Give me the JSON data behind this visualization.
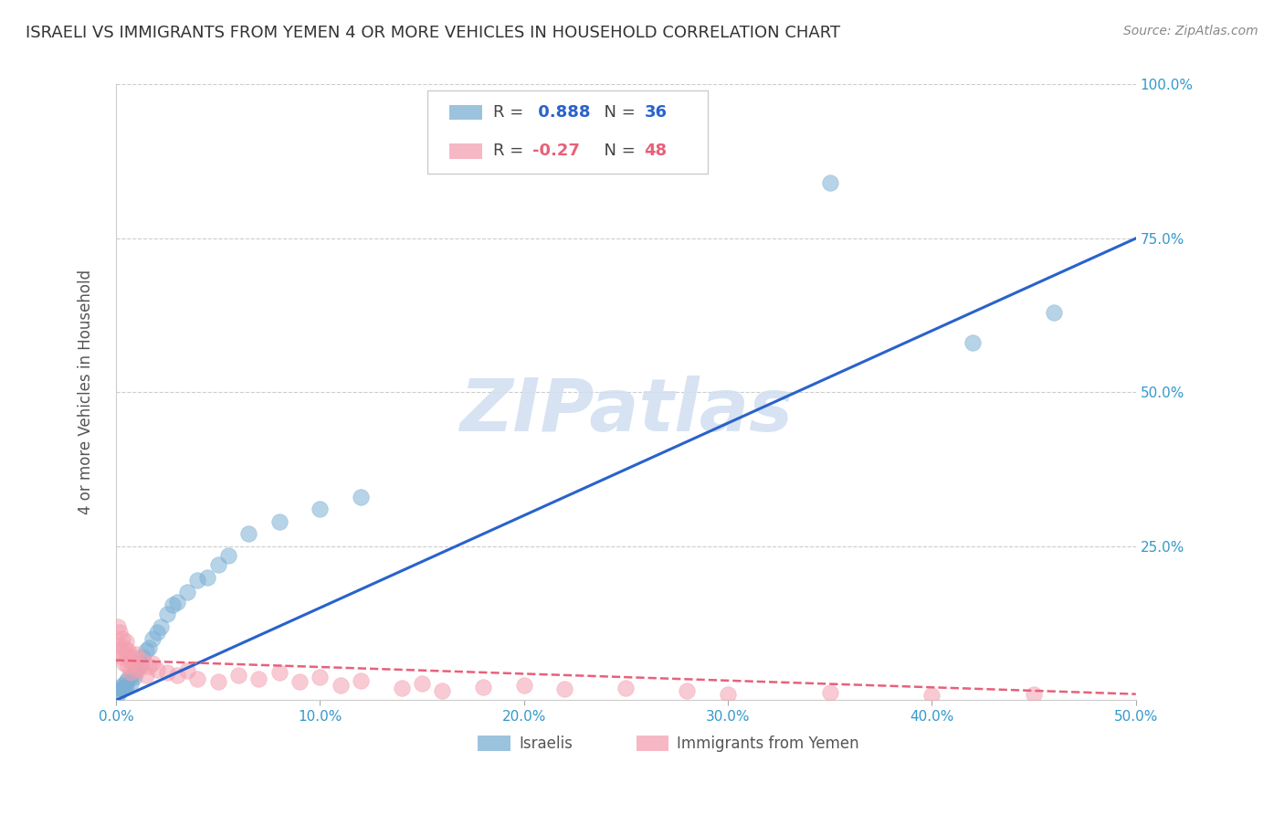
{
  "title": "ISRAELI VS IMMIGRANTS FROM YEMEN 4 OR MORE VEHICLES IN HOUSEHOLD CORRELATION CHART",
  "source": "Source: ZipAtlas.com",
  "ylabel": "4 or more Vehicles in Household",
  "xmin": 0.0,
  "xmax": 0.5,
  "ymin": 0.0,
  "ymax": 1.0,
  "xticks": [
    0.0,
    0.1,
    0.2,
    0.3,
    0.4,
    0.5
  ],
  "yticks": [
    0.0,
    0.25,
    0.5,
    0.75,
    1.0
  ],
  "ytick_labels": [
    "",
    "25.0%",
    "50.0%",
    "75.0%",
    "100.0%"
  ],
  "xtick_labels": [
    "0.0%",
    "10.0%",
    "20.0%",
    "30.0%",
    "40.0%",
    "50.0%"
  ],
  "israeli_R": 0.888,
  "israeli_N": 36,
  "yemen_R": -0.27,
  "yemen_N": 48,
  "israeli_color": "#7bafd4",
  "yemen_color": "#f4a0b0",
  "israeli_line_color": "#2962cc",
  "yemen_line_color": "#e8607a",
  "watermark": "ZIPatlas",
  "watermark_color": "#d0dff0",
  "legend_label_israeli": "Israelis",
  "legend_label_yemen": "Immigrants from Yemen",
  "israeli_x": [
    0.001,
    0.002,
    0.002,
    0.003,
    0.003,
    0.004,
    0.005,
    0.005,
    0.006,
    0.007,
    0.008,
    0.009,
    0.01,
    0.011,
    0.012,
    0.013,
    0.015,
    0.016,
    0.018,
    0.02,
    0.022,
    0.025,
    0.028,
    0.03,
    0.035,
    0.04,
    0.045,
    0.05,
    0.055,
    0.065,
    0.08,
    0.1,
    0.12,
    0.35,
    0.42,
    0.46
  ],
  "israeli_y": [
    0.01,
    0.015,
    0.02,
    0.018,
    0.025,
    0.02,
    0.022,
    0.03,
    0.035,
    0.028,
    0.04,
    0.038,
    0.05,
    0.055,
    0.06,
    0.07,
    0.08,
    0.085,
    0.1,
    0.11,
    0.12,
    0.14,
    0.155,
    0.16,
    0.175,
    0.195,
    0.2,
    0.22,
    0.235,
    0.27,
    0.29,
    0.31,
    0.33,
    0.84,
    0.58,
    0.63
  ],
  "yemen_x": [
    0.001,
    0.001,
    0.002,
    0.002,
    0.003,
    0.003,
    0.004,
    0.004,
    0.005,
    0.005,
    0.006,
    0.006,
    0.007,
    0.007,
    0.008,
    0.009,
    0.01,
    0.011,
    0.012,
    0.013,
    0.015,
    0.016,
    0.018,
    0.02,
    0.025,
    0.03,
    0.035,
    0.04,
    0.05,
    0.06,
    0.07,
    0.08,
    0.09,
    0.1,
    0.11,
    0.12,
    0.14,
    0.15,
    0.16,
    0.18,
    0.2,
    0.22,
    0.25,
    0.28,
    0.3,
    0.35,
    0.4,
    0.45
  ],
  "yemen_y": [
    0.12,
    0.09,
    0.08,
    0.11,
    0.07,
    0.1,
    0.085,
    0.06,
    0.075,
    0.095,
    0.055,
    0.08,
    0.065,
    0.045,
    0.07,
    0.06,
    0.075,
    0.05,
    0.055,
    0.065,
    0.04,
    0.055,
    0.06,
    0.05,
    0.045,
    0.04,
    0.048,
    0.035,
    0.03,
    0.04,
    0.035,
    0.045,
    0.03,
    0.038,
    0.025,
    0.032,
    0.02,
    0.028,
    0.015,
    0.022,
    0.025,
    0.018,
    0.02,
    0.015,
    0.01,
    0.012,
    0.008,
    0.01
  ],
  "israeli_trend_x": [
    0.0,
    0.5
  ],
  "israeli_trend_y": [
    0.0,
    0.75
  ],
  "yemen_trend_x": [
    0.0,
    0.5
  ],
  "yemen_trend_y": [
    0.065,
    0.01
  ]
}
